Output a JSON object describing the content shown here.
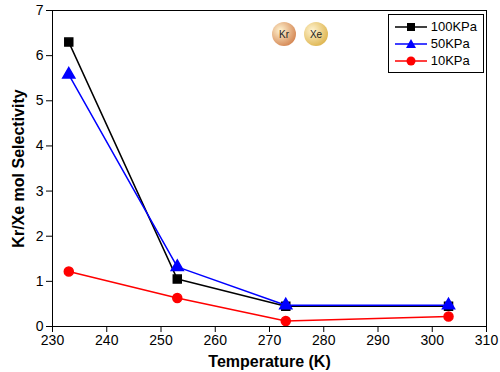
{
  "chart_data": {
    "type": "line",
    "x_label": "Temperature (K)",
    "y_label": "Kr/Xe mol Selectivity",
    "xlim": [
      230,
      310
    ],
    "xticks": [
      230,
      240,
      250,
      260,
      270,
      280,
      290,
      300,
      310
    ],
    "ylim": [
      0,
      7
    ],
    "yticks": [
      0,
      1,
      2,
      3,
      4,
      5,
      6,
      7
    ],
    "x": [
      233,
      253,
      273,
      303
    ],
    "series": [
      {
        "name": "100KPa",
        "color": "#000000",
        "marker": "square",
        "values": [
          6.3,
          1.05,
          0.45,
          0.45
        ]
      },
      {
        "name": "50KPa",
        "color": "#0000ff",
        "marker": "triangle",
        "values": [
          5.58,
          1.32,
          0.47,
          0.47
        ]
      },
      {
        "name": "10KPa",
        "color": "#ff0000",
        "marker": "circle",
        "values": [
          1.22,
          0.63,
          0.12,
          0.22
        ]
      }
    ],
    "legend": "top-right",
    "annotations": [
      {
        "text": "Kr",
        "color": "#c8662e"
      },
      {
        "text": "Xe",
        "color": "#d4a32a"
      }
    ]
  }
}
